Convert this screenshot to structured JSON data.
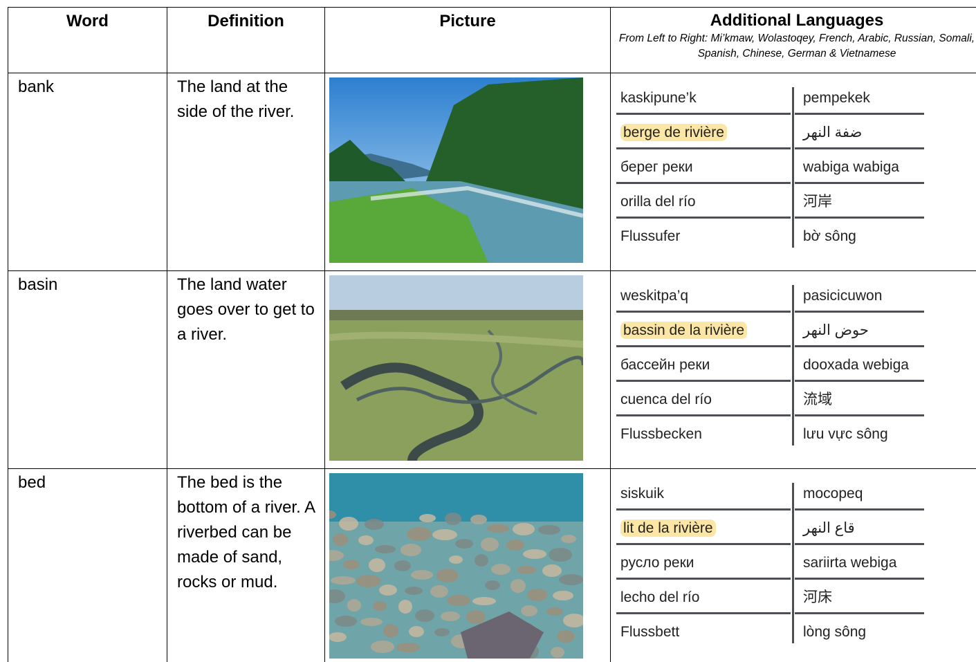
{
  "header": {
    "columns": [
      "Word",
      "Definition",
      "Picture",
      "Additional Languages"
    ],
    "languages_note": "From Left to Right: Mi’kmaw, Wolastoqey, French, Arabic, Russian, Somali, Spanish, Chinese, German & Vietnamese"
  },
  "rows": [
    {
      "word": "bank",
      "definition": "The land at the side of the river.",
      "translations": [
        "kaskipune’k",
        "pempekek",
        "berge de rivière",
        "ضفة النهر",
        "берег реки",
        "wabiga wabiga",
        "orilla del río",
        "河岸",
        "Flussufer",
        "bờ sông"
      ]
    },
    {
      "word": "basin",
      "definition": "The land water goes over to get to a river.",
      "translations": [
        "weskitpa’q",
        "pasicicuwon",
        "bassin de la rivière",
        "حوض النهر",
        "бассейн реки",
        "dooxada webiga",
        "cuenca del río",
        "流域",
        "Flussbecken",
        "lưu vực sông"
      ]
    },
    {
      "word": "bed",
      "definition": "The bed is the bottom of a river. A riverbed can be made of sand, rocks or mud.",
      "translations": [
        "siskuik",
        "mocopeq",
        "lit de la rivière",
        "قاع النهر",
        "русло реки",
        "sariirta webiga",
        "lecho del río",
        "河床",
        "Flussbett",
        "lòng sông"
      ]
    }
  ]
}
